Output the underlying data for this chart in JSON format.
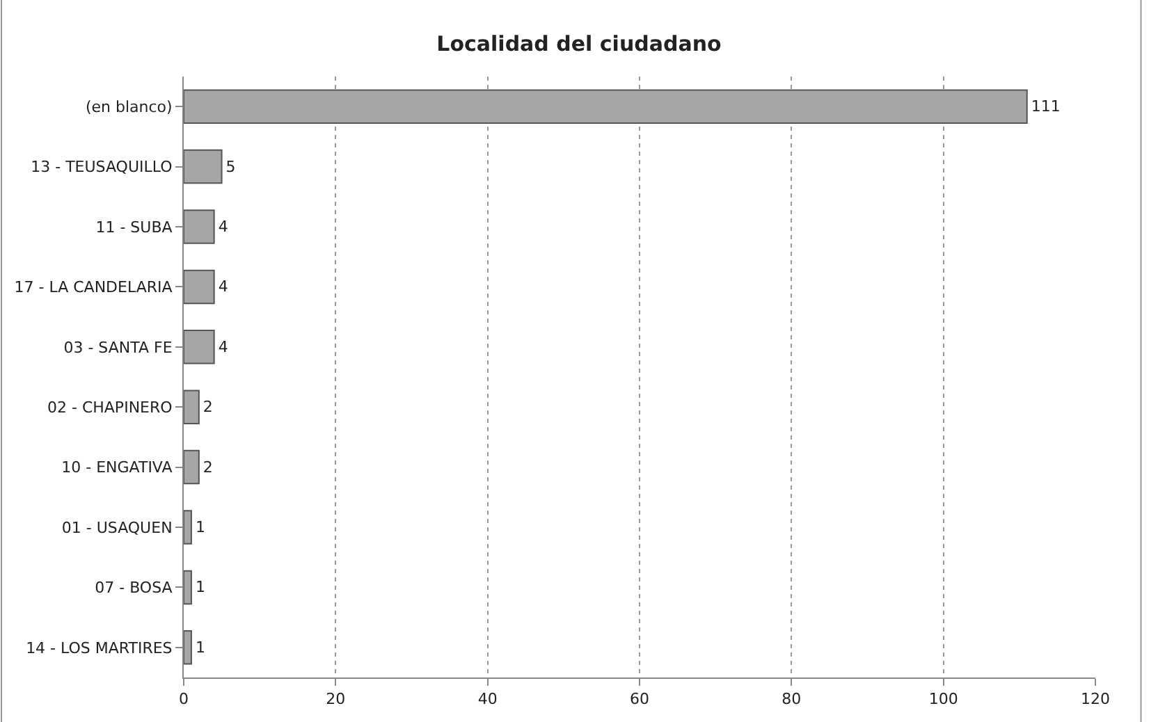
{
  "chart_data": {
    "type": "bar",
    "orientation": "horizontal",
    "title": "Localidad del ciudadano",
    "categories": [
      "(en blanco)",
      "13 - TEUSAQUILLO",
      "11 - SUBA",
      "17 - LA CANDELARIA",
      "03 - SANTA FE",
      "02 - CHAPINERO",
      "10 - ENGATIVA",
      "01 - USAQUEN",
      "07 - BOSA",
      "14 - LOS MARTIRES"
    ],
    "values": [
      111,
      5,
      4,
      4,
      4,
      2,
      2,
      1,
      1,
      1
    ],
    "color": "#a6a6a6",
    "xlim": [
      0,
      120
    ],
    "xticks": [
      0,
      20,
      40,
      60,
      80,
      100,
      120
    ],
    "grid": "x",
    "data_labels": true,
    "legend": false
  }
}
